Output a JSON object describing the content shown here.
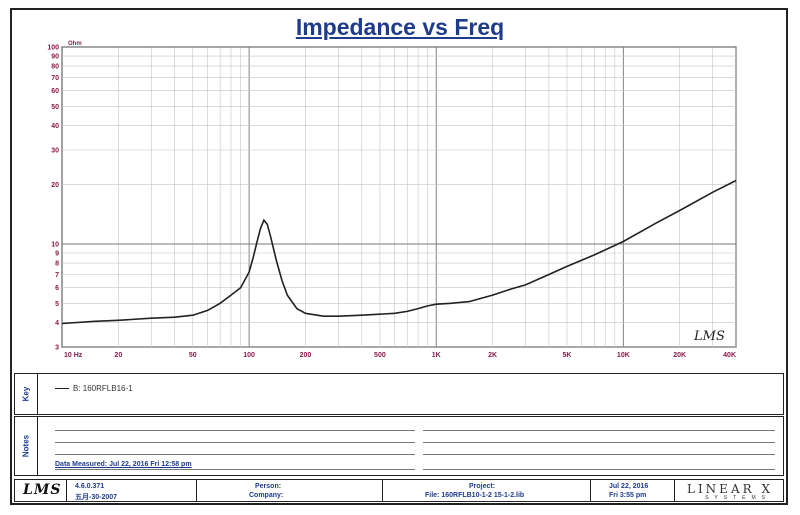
{
  "chart_data": {
    "type": "line",
    "title": "Impedance vs Freq",
    "ylabel": "Ohm",
    "xlim": [
      10,
      40000
    ],
    "ylim": [
      3,
      100
    ],
    "x_scale": "log",
    "y_scale": "log",
    "grid": true,
    "x_ticks": [
      {
        "value": 10,
        "label": "10 Hz"
      },
      {
        "value": 20,
        "label": "20"
      },
      {
        "value": 50,
        "label": "50"
      },
      {
        "value": 100,
        "label": "100"
      },
      {
        "value": 200,
        "label": "200"
      },
      {
        "value": 500,
        "label": "500"
      },
      {
        "value": 1000,
        "label": "1K"
      },
      {
        "value": 2000,
        "label": "2K"
      },
      {
        "value": 5000,
        "label": "5K"
      },
      {
        "value": 10000,
        "label": "10K"
      },
      {
        "value": 20000,
        "label": "20K"
      },
      {
        "value": 40000,
        "label": "40K"
      }
    ],
    "y_ticks": [
      {
        "value": 100,
        "label": "100"
      },
      {
        "value": 90,
        "label": "90"
      },
      {
        "value": 80,
        "label": "80"
      },
      {
        "value": 70,
        "label": "70"
      },
      {
        "value": 60,
        "label": "60"
      },
      {
        "value": 50,
        "label": "50"
      },
      {
        "value": 40,
        "label": "40"
      },
      {
        "value": 30,
        "label": "30"
      },
      {
        "value": 20,
        "label": "20"
      },
      {
        "value": 10,
        "label": "10"
      },
      {
        "value": 9,
        "label": "9"
      },
      {
        "value": 8,
        "label": "8"
      },
      {
        "value": 7,
        "label": "7"
      },
      {
        "value": 6,
        "label": "6"
      },
      {
        "value": 5,
        "label": "5"
      },
      {
        "value": 4,
        "label": "4"
      },
      {
        "value": 3,
        "label": "3"
      }
    ],
    "series": [
      {
        "name": "B: 160RFLB16-1",
        "color": "#222222",
        "x": [
          10,
          15,
          20,
          30,
          40,
          50,
          60,
          70,
          80,
          90,
          100,
          105,
          110,
          115,
          120,
          125,
          130,
          140,
          150,
          160,
          180,
          200,
          250,
          300,
          400,
          500,
          600,
          700,
          800,
          900,
          1000,
          1200,
          1500,
          2000,
          2500,
          3000,
          4000,
          5000,
          7000,
          10000,
          15000,
          20000,
          30000,
          40000
        ],
        "values": [
          3.95,
          4.05,
          4.1,
          4.2,
          4.25,
          4.35,
          4.6,
          5.0,
          5.5,
          6.0,
          7.2,
          8.5,
          10.2,
          12.0,
          13.2,
          12.6,
          11.0,
          8.2,
          6.5,
          5.5,
          4.7,
          4.45,
          4.3,
          4.3,
          4.35,
          4.4,
          4.45,
          4.55,
          4.7,
          4.85,
          4.95,
          5.0,
          5.1,
          5.5,
          5.9,
          6.2,
          7.0,
          7.7,
          8.8,
          10.3,
          12.8,
          14.8,
          18.3,
          21.0
        ]
      }
    ]
  },
  "watermark": "LMS",
  "legend": {
    "side_label": "Key",
    "entry": "B: 160RFLB16-1"
  },
  "notes": {
    "side_label": "Notes",
    "measured": "Data Measured: Jul 22, 2016  Fri 12:58 pm"
  },
  "footer": {
    "logo": "LMS",
    "version": "4.6.0.371",
    "build": "五月-30-2007",
    "person_label": "Person:",
    "company_label": "Company:",
    "project_label": "Project:",
    "file_label": "File: 160RFLB10-1-2 15-1-2.lib",
    "date": "Jul 22, 2016",
    "time": "Fri  3:55 pm",
    "brand": "LINEAR X",
    "brand_sub": "SYSTEMS"
  }
}
